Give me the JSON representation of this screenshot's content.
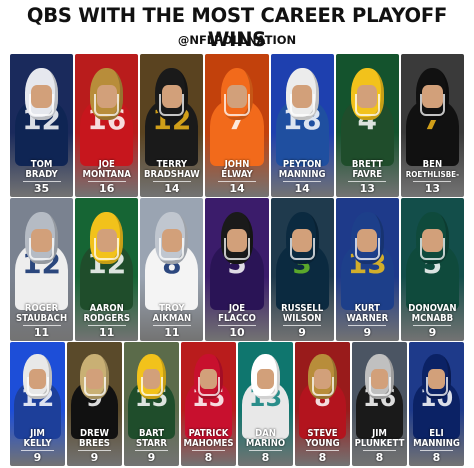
{
  "header": {
    "title": "QBS WITH THE MOST CAREER PLAYOFF WINS",
    "handle": "@NFLPOLLNATION"
  },
  "rows": [
    [
      {
        "first": "TOM",
        "last": "BRADY",
        "wins": "35",
        "jersey": "12",
        "bg": "#1a2a5c",
        "jersey_color": "#0f2554",
        "helmet": "#e6e8ee",
        "num_color": "#ffffff"
      },
      {
        "first": "JOE",
        "last": "MONTANA",
        "wins": "16",
        "jersey": "16",
        "bg": "#b91c1c",
        "jersey_color": "#c7161d",
        "helmet": "#b88d3a",
        "num_color": "#ffffff"
      },
      {
        "first": "TERRY",
        "last": "BRADSHAW",
        "wins": "14",
        "jersey": "12",
        "bg": "#5a4320",
        "jersey_color": "#1a1a1a",
        "helmet": "#1a1a1a",
        "num_color": "#f2b81b"
      },
      {
        "first": "JOHN",
        "last": "ELWAY",
        "wins": "14",
        "jersey": "7",
        "bg": "#c2410c",
        "jersey_color": "#f26a1b",
        "helmet": "#f26a1b",
        "num_color": "#ffffff"
      },
      {
        "first": "PEYTON",
        "last": "MANNING",
        "wins": "14",
        "jersey": "18",
        "bg": "#1e40af",
        "jersey_color": "#1f4fa0",
        "helmet": "#ececec",
        "num_color": "#ffffff"
      },
      {
        "first": "BRETT",
        "last": "FAVRE",
        "wins": "13",
        "jersey": "4",
        "bg": "#14532d",
        "jersey_color": "#1f4d2b",
        "helmet": "#f2c21b",
        "num_color": "#ffffff"
      },
      {
        "first": "BEN",
        "last": "ROETHLISBE-",
        "wins": "13",
        "jersey": "7",
        "bg": "#3a3a3a",
        "jersey_color": "#111111",
        "helmet": "#111111",
        "num_color": "#f2b81b"
      }
    ],
    [
      {
        "first": "ROGER",
        "last": "STAUBACH",
        "wins": "11",
        "jersey": "12",
        "bg": "#7a8290",
        "jersey_color": "#eeeeee",
        "helmet": "#b5bbc4",
        "num_color": "#0a2a6a"
      },
      {
        "first": "AARON",
        "last": "RODGERS",
        "wins": "11",
        "jersey": "12",
        "bg": "#166534",
        "jersey_color": "#1f4d2b",
        "helmet": "#f2c21b",
        "num_color": "#ffffff"
      },
      {
        "first": "TROY",
        "last": "AIKMAN",
        "wins": "11",
        "jersey": "8",
        "bg": "#9aa4b2",
        "jersey_color": "#f4f4f4",
        "helmet": "#c0c6cf",
        "num_color": "#0a2a6a"
      },
      {
        "first": "JOE",
        "last": "FLACCO",
        "wins": "10",
        "jersey": "5",
        "bg": "#3b1c6b",
        "jersey_color": "#2a1456",
        "helmet": "#1a1a1a",
        "num_color": "#ffffff"
      },
      {
        "first": "RUSSELL",
        "last": "WILSON",
        "wins": "9",
        "jersey": "3",
        "bg": "#1f3a4d",
        "jersey_color": "#0b2a40",
        "helmet": "#0b2a40",
        "num_color": "#69be28"
      },
      {
        "first": "KURT",
        "last": "WARNER",
        "wins": "9",
        "jersey": "13",
        "bg": "#1e3a8a",
        "jersey_color": "#1d3f8a",
        "helmet": "#1d3f8a",
        "num_color": "#f2c21b"
      },
      {
        "first": "DONOVAN",
        "last": "MCNABB",
        "wins": "9",
        "jersey": "5",
        "bg": "#134e4a",
        "jersey_color": "#0f4a3c",
        "helmet": "#0f4a3c",
        "num_color": "#ffffff"
      }
    ],
    [
      {
        "first": "JIM",
        "last": "KELLY",
        "wins": "9",
        "jersey": "12",
        "bg": "#1d4ed8",
        "jersey_color": "#1d3f9a",
        "helmet": "#e8e8e8",
        "num_color": "#ffffff"
      },
      {
        "first": "DREW",
        "last": "BREES",
        "wins": "9",
        "jersey": "9",
        "bg": "#5a4a2a",
        "jersey_color": "#111111",
        "helmet": "#c9b074",
        "num_color": "#ffffff"
      },
      {
        "first": "BART",
        "last": "STARR",
        "wins": "9",
        "jersey": "15",
        "bg": "#5b6b4a",
        "jersey_color": "#1f4d2b",
        "helmet": "#f2c21b",
        "num_color": "#ffffff"
      },
      {
        "first": "PATRICK",
        "last": "MAHOMES",
        "wins": "8",
        "jersey": "15",
        "bg": "#b91c1c",
        "jersey_color": "#c8102e",
        "helmet": "#c8102e",
        "num_color": "#ffffff"
      },
      {
        "first": "DAN",
        "last": "MARINO",
        "wins": "8",
        "jersey": "13",
        "bg": "#0f766e",
        "jersey_color": "#e8e8e8",
        "helmet": "#ffffff",
        "num_color": "#0a7e7a"
      },
      {
        "first": "STEVE",
        "last": "YOUNG",
        "wins": "8",
        "jersey": "8",
        "bg": "#991b1b",
        "jersey_color": "#b3141e",
        "helmet": "#b88d3a",
        "num_color": "#ffffff"
      },
      {
        "first": "JIM",
        "last": "PLUNKETT",
        "wins": "8",
        "jersey": "16",
        "bg": "#4b5563",
        "jersey_color": "#1a1a1a",
        "helmet": "#c0c0c0",
        "num_color": "#ffffff"
      },
      {
        "first": "ELI",
        "last": "MANNING",
        "wins": "8",
        "jersey": "10",
        "bg": "#1e3a8a",
        "jersey_color": "#0b2265",
        "helmet": "#0b2265",
        "num_color": "#ffffff"
      }
    ]
  ]
}
